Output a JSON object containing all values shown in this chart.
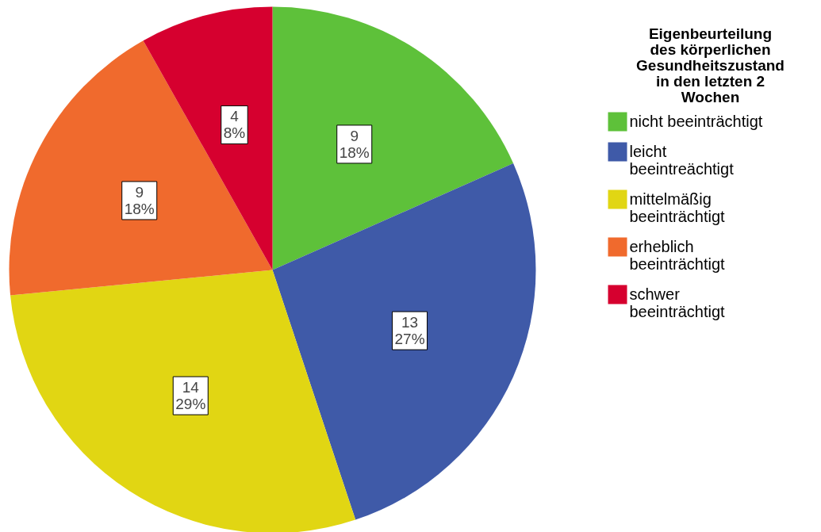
{
  "chart_data": {
    "type": "pie",
    "legend_title": "Eigenbeurteilung des körperlichen Gesundheitszustand in den letzten 2 Wochen",
    "categories": [
      "nicht beeinträchtigt",
      "leicht beeintreächtigt",
      "mittelmäßig beeinträchtigt",
      "erheblich beeinträchtigt",
      "schwer beeinträchtigt"
    ],
    "values": [
      9,
      13,
      14,
      9,
      4
    ],
    "value_labels": [
      "9\n18%",
      "13\n27%",
      "14\n29%",
      "9\n18%",
      "4\n8%"
    ],
    "colors": [
      "#5ec13a",
      "#3f5aa8",
      "#e1d613",
      "#f06a2d",
      "#d6002f"
    ],
    "legend": "right"
  }
}
